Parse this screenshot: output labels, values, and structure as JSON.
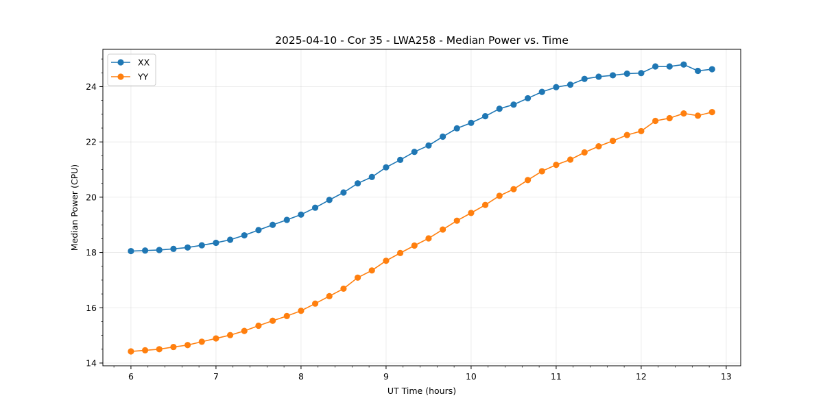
{
  "chart_data": {
    "type": "line",
    "title": "2025-04-10 - Cor 35 - LWA258 - Median Power vs. Time",
    "xlabel": "UT Time (hours)",
    "ylabel": "Median Power (CPU)",
    "xlim": [
      5.67,
      13.17
    ],
    "ylim": [
      13.9,
      25.35
    ],
    "xticks": [
      6,
      7,
      8,
      9,
      10,
      11,
      12,
      13
    ],
    "yticks": [
      14,
      16,
      18,
      20,
      22,
      24
    ],
    "grid": true,
    "legend_position": "top-left",
    "x": [
      6.0,
      6.1667,
      6.3333,
      6.5,
      6.6667,
      6.8333,
      7.0,
      7.1667,
      7.3333,
      7.5,
      7.6667,
      7.8333,
      8.0,
      8.1667,
      8.3333,
      8.5,
      8.6667,
      8.8333,
      9.0,
      9.1667,
      9.3333,
      9.5,
      9.6667,
      9.8333,
      10.0,
      10.1667,
      10.3333,
      10.5,
      10.6667,
      10.8333,
      11.0,
      11.1667,
      11.3333,
      11.5,
      11.6667,
      11.8333,
      12.0,
      12.1667,
      12.3333,
      12.5,
      12.6667,
      12.8333
    ],
    "series": [
      {
        "name": "XX",
        "color": "#1f77b4",
        "values": [
          18.05,
          18.07,
          18.09,
          18.13,
          18.18,
          18.26,
          18.35,
          18.46,
          18.62,
          18.81,
          19.0,
          19.18,
          19.37,
          19.62,
          19.9,
          20.17,
          20.5,
          20.73,
          21.08,
          21.35,
          21.64,
          21.87,
          22.19,
          22.49,
          22.69,
          22.93,
          23.2,
          23.35,
          23.58,
          23.81,
          23.98,
          24.07,
          24.28,
          24.36,
          24.41,
          24.47,
          24.49,
          24.73,
          24.73,
          24.8,
          24.57,
          24.63
        ]
      },
      {
        "name": "YY",
        "color": "#ff7f0e",
        "values": [
          14.42,
          14.46,
          14.5,
          14.58,
          14.65,
          14.77,
          14.89,
          15.01,
          15.16,
          15.35,
          15.53,
          15.7,
          15.89,
          16.15,
          16.42,
          16.69,
          17.09,
          17.35,
          17.7,
          17.98,
          18.25,
          18.51,
          18.83,
          19.15,
          19.43,
          19.72,
          20.05,
          20.29,
          20.62,
          20.94,
          21.17,
          21.36,
          21.62,
          21.84,
          22.04,
          22.25,
          22.39,
          22.76,
          22.86,
          23.03,
          22.95,
          23.08
        ]
      }
    ]
  }
}
